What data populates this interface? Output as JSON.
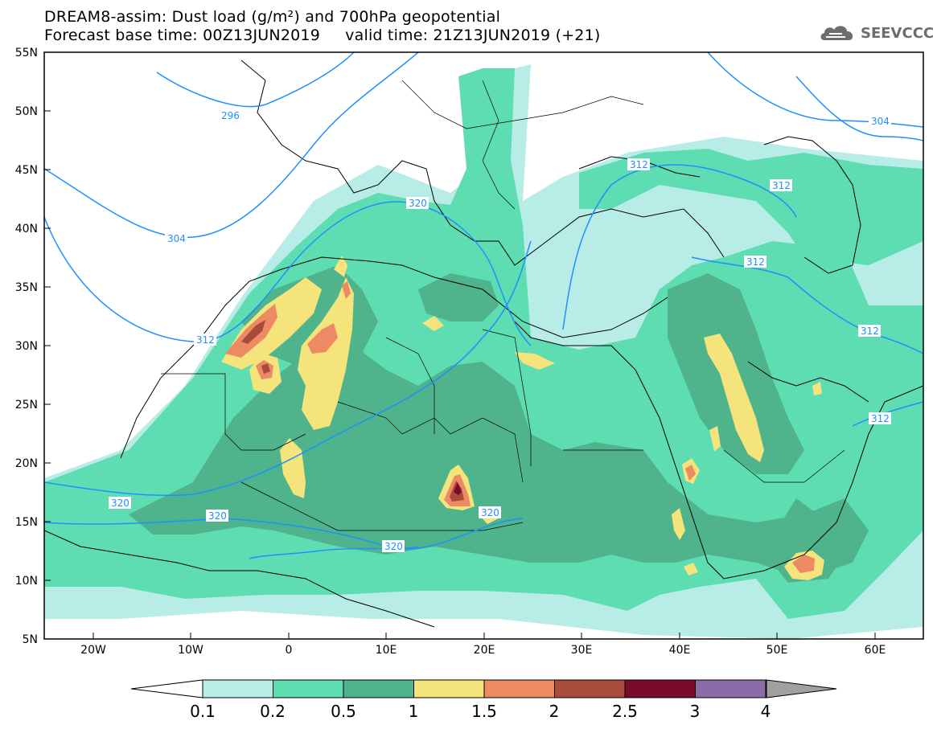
{
  "header": {
    "title_line1": "DREAM8-assim: Dust load (g/m²) and 700hPa geopotential",
    "title_line2": "Forecast base time: 00Z13JUN2019     valid time: 21Z13JUN2019 (+21)"
  },
  "logo": {
    "text": "SEEVCCC",
    "icon": "cloud-icon"
  },
  "map": {
    "lon_range": [
      -25,
      65
    ],
    "lat_range": [
      5,
      55
    ],
    "lat_ticks": [
      "55N",
      "50N",
      "45N",
      "40N",
      "35N",
      "30N",
      "25N",
      "20N",
      "15N",
      "10N",
      "5N"
    ],
    "lon_ticks": [
      "20W",
      "10W",
      "0",
      "10E",
      "20E",
      "30E",
      "40E",
      "50E",
      "60E"
    ],
    "contour_labels": [
      "296",
      "304",
      "304",
      "312",
      "312",
      "312",
      "312",
      "312",
      "312",
      "320",
      "320",
      "320",
      "320",
      "320"
    ]
  },
  "legend": {
    "levels": [
      "0.1",
      "0.2",
      "0.5",
      "1",
      "1.5",
      "2",
      "2.5",
      "3",
      "4"
    ],
    "colors": [
      "#b8ece6",
      "#5edcb2",
      "#4fb38c",
      "#f5e37c",
      "#eb8a63",
      "#a84a3c",
      "#7a0a2a",
      "#8c6ca8",
      "#a0a0a0"
    ],
    "under_color": "#ffffff"
  }
}
